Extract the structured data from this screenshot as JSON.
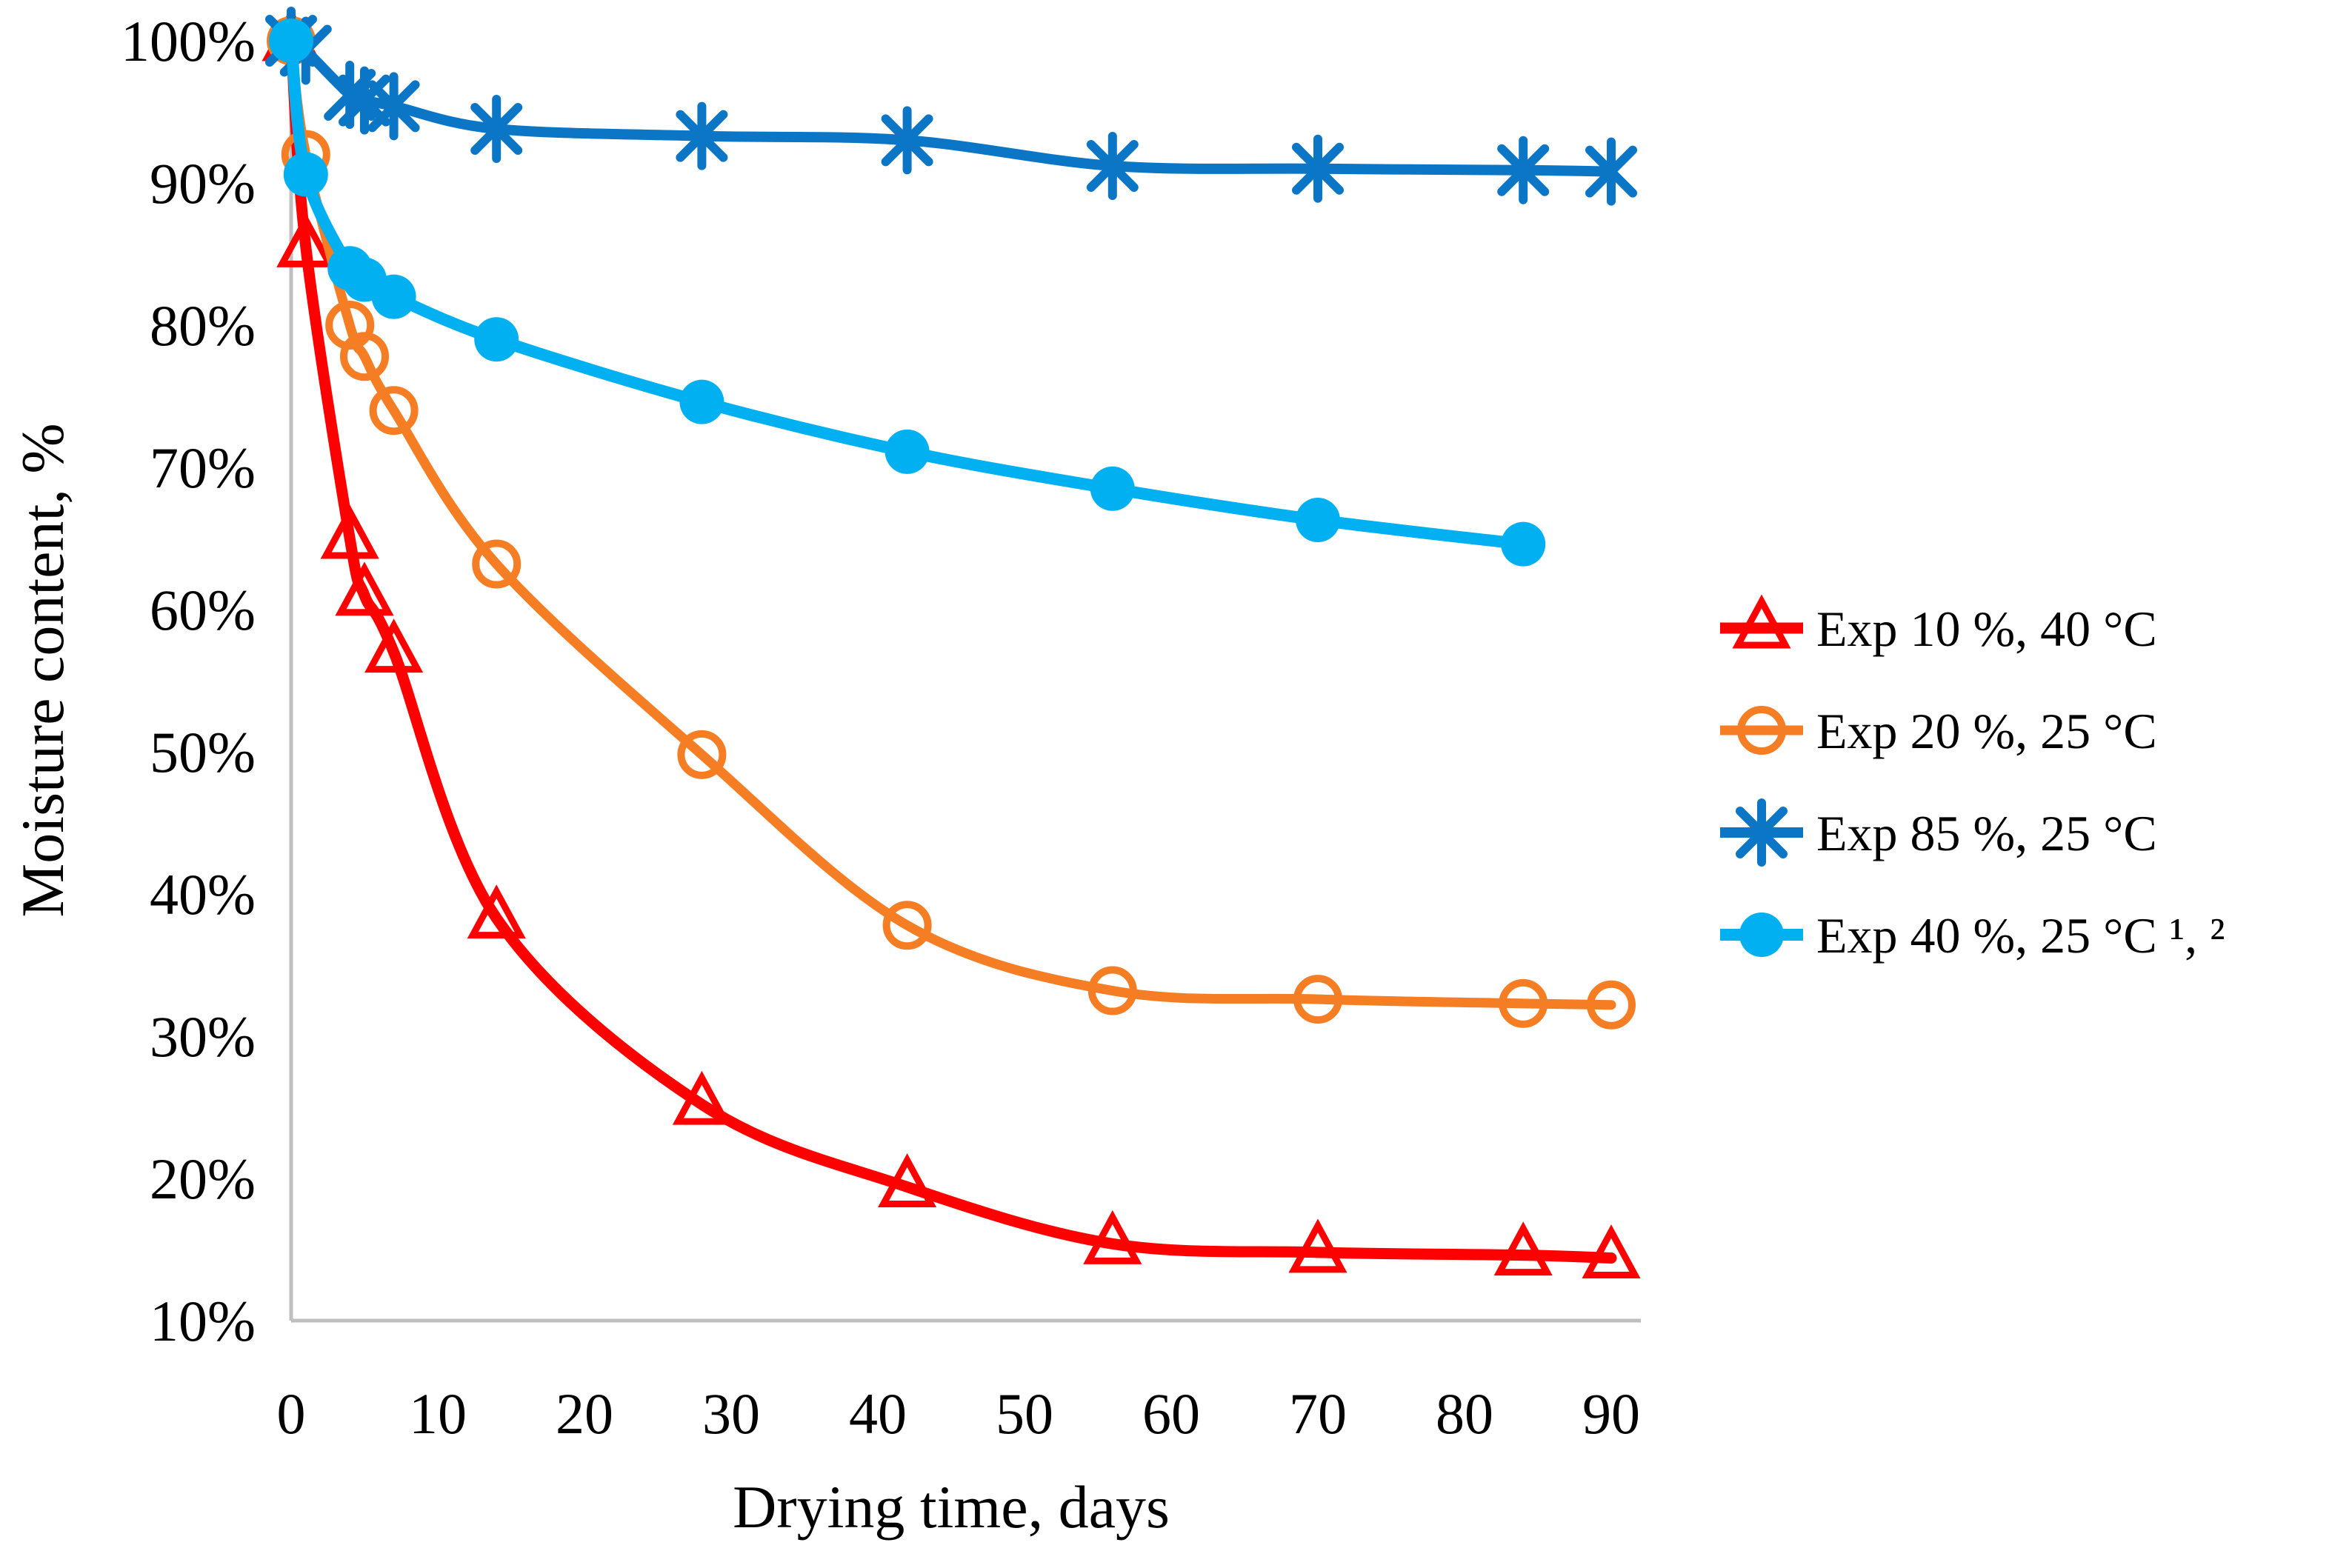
{
  "chart_data": {
    "type": "line",
    "title": "",
    "xlabel": "Drying time, days",
    "ylabel": "Moisture content, %",
    "x": [
      0,
      1,
      4,
      5,
      7,
      14,
      28,
      42,
      56,
      70,
      84,
      90
    ],
    "series": [
      {
        "name": "Exp 10 %, 40 °C",
        "color": "#FF0000",
        "marker": "triangle-open",
        "values": [
          100,
          85.5,
          65.0,
          61.0,
          57.0,
          38.3,
          25.2,
          19.4,
          15.4,
          14.8,
          14.6,
          14.4
        ]
      },
      {
        "name": "Exp 20 %, 25 °C",
        "color": "#F57E25",
        "marker": "circle-open",
        "values": [
          100,
          92.0,
          80.0,
          77.8,
          74.0,
          63.2,
          49.8,
          37.8,
          33.2,
          32.6,
          32.3,
          32.2
        ]
      },
      {
        "name": "Exp 85 %, 25 °C",
        "color": "#0C76C6",
        "marker": "asterisk",
        "values": [
          100,
          99.3,
          96.2,
          95.8,
          95.4,
          93.8,
          93.3,
          93.0,
          91.2,
          91.0,
          90.9,
          90.8
        ]
      },
      {
        "name": "Exp 40 %, 25 °C ¹, ²",
        "color": "#00B0F0",
        "marker": "circle-filled",
        "values": [
          100,
          90.6,
          84.0,
          83.2,
          82.0,
          79.0,
          74.6,
          71.1,
          68.5,
          66.3,
          64.6,
          null
        ]
      }
    ],
    "xticks": [
      0,
      10,
      20,
      30,
      40,
      50,
      60,
      70,
      80,
      90
    ],
    "yticks": [
      "100%",
      "90%",
      "80%",
      "70%",
      "60%",
      "50%",
      "40%",
      "30%",
      "20%",
      "10%"
    ],
    "ytick_values": [
      100,
      90,
      80,
      70,
      60,
      50,
      40,
      30,
      20,
      10
    ],
    "xlim": [
      0,
      90
    ],
    "ylim": [
      10,
      100
    ],
    "grid": false,
    "legend_position": "right",
    "axis_color": "#BFBFBF",
    "background_color": "#FFFFFF"
  }
}
